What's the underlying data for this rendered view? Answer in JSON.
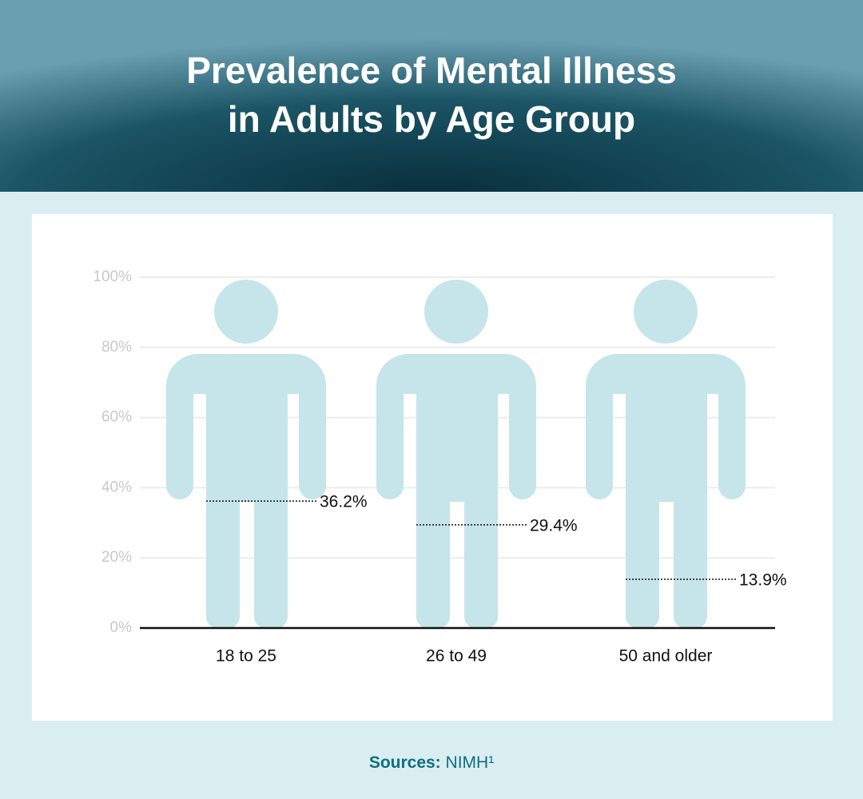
{
  "chart_data": {
    "type": "figure-bar",
    "title": [
      "Prevalence of Mental Illness",
      "in Adults by Age Group"
    ],
    "categories": [
      "18 to 25",
      "26 to 49",
      "50 and older"
    ],
    "values": [
      36.2,
      29.4,
      13.9
    ],
    "value_labels": [
      "36.2%",
      "29.4%",
      "13.9%"
    ],
    "colors": [
      "#a3bb02",
      "#b2ca04"
    ],
    "figure_color": "#c5e5ea",
    "ylim": [
      0,
      100
    ],
    "yticks": [
      {
        "value": 0,
        "label": "0%"
      },
      {
        "value": 20,
        "label": "20%"
      },
      {
        "value": 40,
        "label": "40%"
      },
      {
        "value": 60,
        "label": "60%"
      },
      {
        "value": 80,
        "label": "80%"
      },
      {
        "value": 100,
        "label": "100%"
      }
    ],
    "grid": true,
    "source_label": "Sources:",
    "source": "NIMH¹"
  }
}
